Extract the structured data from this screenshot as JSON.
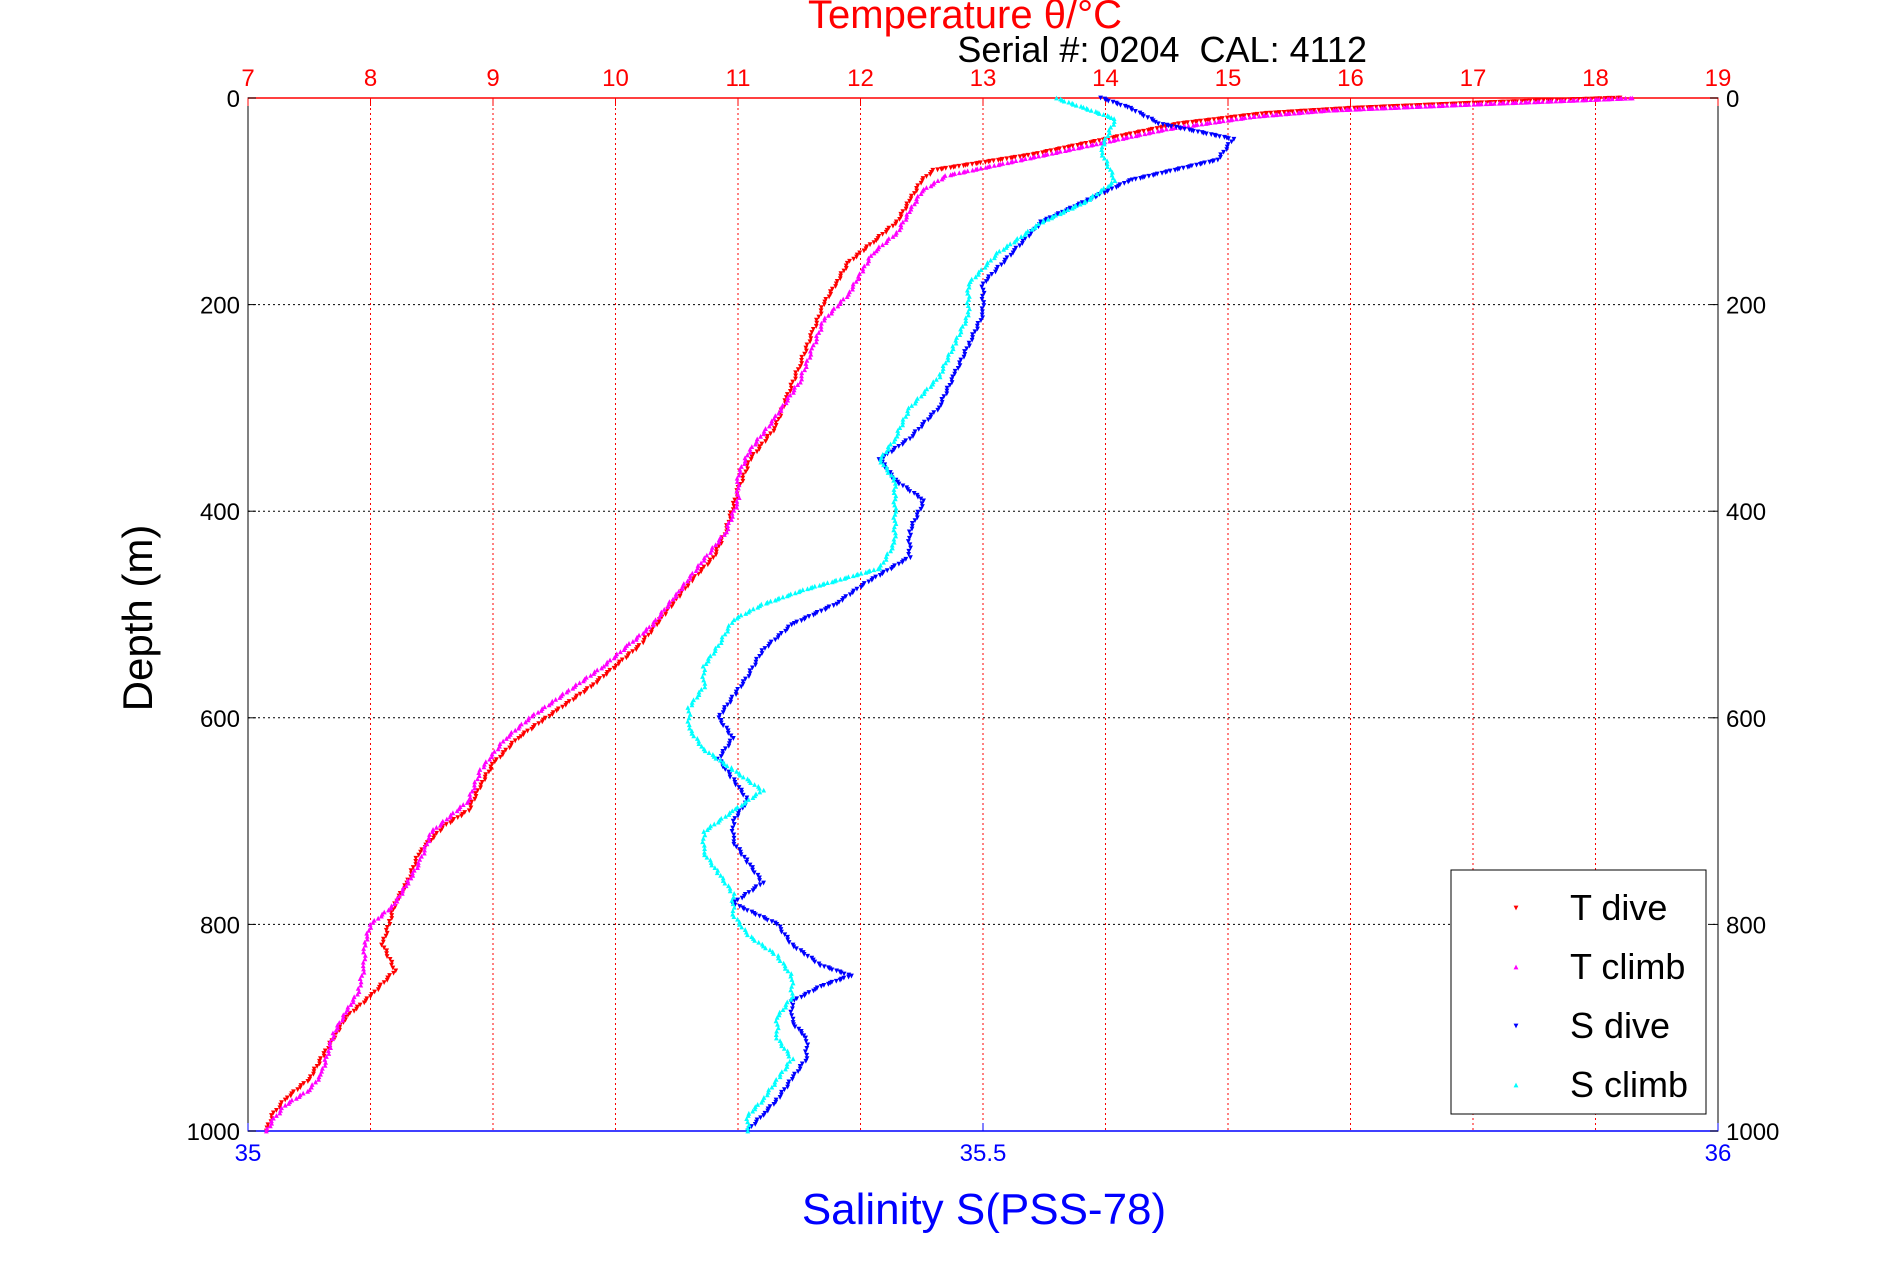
{
  "chart_data": {
    "type": "scatter",
    "title": "Temperature θ/°C",
    "subtitle": "Serial #: 0204  CAL: 4112",
    "ylabel": "Depth (m)",
    "x2label": "Salinity S(PSS-78)",
    "ylim": [
      1000,
      0
    ],
    "yticks": [
      0,
      200,
      400,
      600,
      800,
      1000
    ],
    "xlim_temperature": [
      7,
      19
    ],
    "xticks_temperature": [
      7,
      8,
      9,
      10,
      11,
      12,
      13,
      14,
      15,
      16,
      17,
      18,
      19
    ],
    "xlim_salinity": [
      35,
      36
    ],
    "xticks_salinity": [
      "35",
      "35.5",
      "36"
    ],
    "grid": true,
    "legend_position": "bottom-right",
    "colors": {
      "temperature_axis": "#ff0000",
      "salinity_axis": "#0000ff",
      "t_dive": "#ff0000",
      "t_climb": "#ff00ff",
      "s_dive": "#0000ff",
      "s_climb": "#00ffff"
    },
    "series": [
      {
        "name": "T dive",
        "axis": "temperature",
        "marker": "triangle-down",
        "points": [
          [
            18.2,
            0
          ],
          [
            17.0,
            5
          ],
          [
            16.0,
            10
          ],
          [
            15.3,
            15
          ],
          [
            14.6,
            25
          ],
          [
            14.0,
            40
          ],
          [
            13.4,
            55
          ],
          [
            12.6,
            70
          ],
          [
            12.5,
            80
          ],
          [
            12.4,
            100
          ],
          [
            12.3,
            120
          ],
          [
            12.1,
            140
          ],
          [
            11.9,
            160
          ],
          [
            11.8,
            180
          ],
          [
            11.7,
            200
          ],
          [
            11.6,
            230
          ],
          [
            11.5,
            260
          ],
          [
            11.4,
            290
          ],
          [
            11.3,
            320
          ],
          [
            11.1,
            350
          ],
          [
            11.0,
            380
          ],
          [
            10.9,
            420
          ],
          [
            10.8,
            445
          ],
          [
            10.6,
            470
          ],
          [
            10.4,
            500
          ],
          [
            10.2,
            530
          ],
          [
            10.0,
            550
          ],
          [
            9.8,
            570
          ],
          [
            9.5,
            595
          ],
          [
            9.2,
            620
          ],
          [
            9.0,
            645
          ],
          [
            8.9,
            665
          ],
          [
            8.8,
            690
          ],
          [
            8.6,
            705
          ],
          [
            8.4,
            730
          ],
          [
            8.3,
            760
          ],
          [
            8.2,
            780
          ],
          [
            8.15,
            800
          ],
          [
            8.1,
            820
          ],
          [
            8.2,
            845
          ],
          [
            8.0,
            870
          ],
          [
            7.8,
            890
          ],
          [
            7.7,
            910
          ],
          [
            7.6,
            930
          ],
          [
            7.5,
            950
          ],
          [
            7.3,
            970
          ],
          [
            7.2,
            985
          ],
          [
            7.15,
            1000
          ]
        ]
      },
      {
        "name": "T climb",
        "axis": "temperature",
        "marker": "triangle-up",
        "points": [
          [
            18.3,
            0
          ],
          [
            17.0,
            6
          ],
          [
            15.8,
            12
          ],
          [
            15.2,
            18
          ],
          [
            14.5,
            30
          ],
          [
            13.9,
            45
          ],
          [
            13.3,
            60
          ],
          [
            12.7,
            75
          ],
          [
            12.5,
            90
          ],
          [
            12.4,
            110
          ],
          [
            12.3,
            130
          ],
          [
            12.1,
            150
          ],
          [
            12.0,
            170
          ],
          [
            11.9,
            190
          ],
          [
            11.7,
            215
          ],
          [
            11.6,
            245
          ],
          [
            11.5,
            275
          ],
          [
            11.3,
            310
          ],
          [
            11.1,
            340
          ],
          [
            11.0,
            365
          ],
          [
            11.0,
            390
          ],
          [
            10.9,
            420
          ],
          [
            10.7,
            450
          ],
          [
            10.5,
            480
          ],
          [
            10.3,
            510
          ],
          [
            10.1,
            530
          ],
          [
            9.9,
            550
          ],
          [
            9.6,
            575
          ],
          [
            9.3,
            600
          ],
          [
            9.1,
            620
          ],
          [
            8.9,
            650
          ],
          [
            8.8,
            680
          ],
          [
            8.5,
            710
          ],
          [
            8.4,
            740
          ],
          [
            8.3,
            760
          ],
          [
            8.2,
            780
          ],
          [
            8.0,
            800
          ],
          [
            7.95,
            820
          ],
          [
            7.95,
            840
          ],
          [
            7.9,
            865
          ],
          [
            7.8,
            885
          ],
          [
            7.7,
            905
          ],
          [
            7.65,
            925
          ],
          [
            7.6,
            945
          ],
          [
            7.5,
            960
          ],
          [
            7.3,
            975
          ],
          [
            7.2,
            990
          ],
          [
            7.15,
            1000
          ]
        ]
      },
      {
        "name": "S dive",
        "axis": "salinity",
        "marker": "triangle-down",
        "points": [
          [
            35.58,
            0
          ],
          [
            35.6,
            10
          ],
          [
            35.62,
            25
          ],
          [
            35.67,
            40
          ],
          [
            35.66,
            60
          ],
          [
            35.6,
            80
          ],
          [
            35.57,
            100
          ],
          [
            35.54,
            120
          ],
          [
            35.52,
            150
          ],
          [
            35.5,
            180
          ],
          [
            35.5,
            210
          ],
          [
            35.49,
            240
          ],
          [
            35.48,
            270
          ],
          [
            35.47,
            300
          ],
          [
            35.45,
            330
          ],
          [
            35.43,
            350
          ],
          [
            35.44,
            370
          ],
          [
            35.46,
            390
          ],
          [
            35.45,
            420
          ],
          [
            35.45,
            445
          ],
          [
            35.42,
            470
          ],
          [
            35.4,
            490
          ],
          [
            35.37,
            510
          ],
          [
            35.35,
            535
          ],
          [
            35.34,
            560
          ],
          [
            35.33,
            580
          ],
          [
            35.32,
            600
          ],
          [
            35.33,
            620
          ],
          [
            35.32,
            640
          ],
          [
            35.33,
            660
          ],
          [
            35.34,
            680
          ],
          [
            35.33,
            700
          ],
          [
            35.33,
            720
          ],
          [
            35.34,
            740
          ],
          [
            35.35,
            760
          ],
          [
            35.33,
            780
          ],
          [
            35.36,
            800
          ],
          [
            35.37,
            820
          ],
          [
            35.39,
            840
          ],
          [
            35.41,
            850
          ],
          [
            35.39,
            860
          ],
          [
            35.37,
            875
          ],
          [
            35.37,
            895
          ],
          [
            35.38,
            910
          ],
          [
            35.38,
            930
          ],
          [
            35.37,
            950
          ],
          [
            35.36,
            970
          ],
          [
            35.35,
            985
          ],
          [
            35.34,
            1000
          ]
        ]
      },
      {
        "name": "S climb",
        "axis": "salinity",
        "marker": "triangle-up",
        "points": [
          [
            35.55,
            0
          ],
          [
            35.57,
            10
          ],
          [
            35.59,
            20
          ],
          [
            35.58,
            50
          ],
          [
            35.59,
            80
          ],
          [
            35.57,
            100
          ],
          [
            35.54,
            120
          ],
          [
            35.51,
            150
          ],
          [
            35.49,
            180
          ],
          [
            35.49,
            210
          ],
          [
            35.48,
            240
          ],
          [
            35.47,
            270
          ],
          [
            35.45,
            300
          ],
          [
            35.44,
            330
          ],
          [
            35.43,
            350
          ],
          [
            35.44,
            370
          ],
          [
            35.44,
            400
          ],
          [
            35.44,
            430
          ],
          [
            35.43,
            455
          ],
          [
            35.38,
            475
          ],
          [
            35.35,
            490
          ],
          [
            35.33,
            505
          ],
          [
            35.32,
            530
          ],
          [
            35.31,
            550
          ],
          [
            35.31,
            570
          ],
          [
            35.3,
            590
          ],
          [
            35.3,
            610
          ],
          [
            35.31,
            630
          ],
          [
            35.33,
            650
          ],
          [
            35.35,
            670
          ],
          [
            35.33,
            690
          ],
          [
            35.31,
            710
          ],
          [
            35.31,
            730
          ],
          [
            35.32,
            750
          ],
          [
            35.33,
            770
          ],
          [
            35.33,
            790
          ],
          [
            35.34,
            810
          ],
          [
            35.36,
            830
          ],
          [
            35.37,
            850
          ],
          [
            35.37,
            870
          ],
          [
            35.36,
            890
          ],
          [
            35.36,
            910
          ],
          [
            35.37,
            930
          ],
          [
            35.36,
            950
          ],
          [
            35.35,
            970
          ],
          [
            35.34,
            985
          ],
          [
            35.34,
            1000
          ]
        ]
      }
    ]
  }
}
